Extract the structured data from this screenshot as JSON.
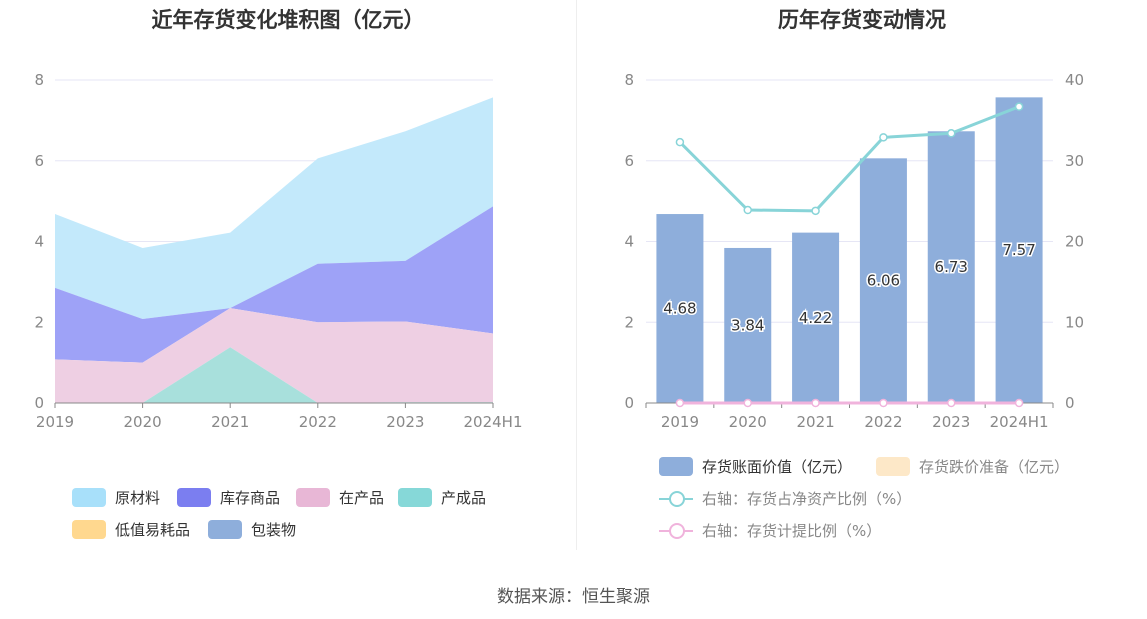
{
  "footer": {
    "source": "数据来源：恒生聚源"
  },
  "left_chart": {
    "title": "近年存货变化堆积图（亿元）",
    "chart_data": {
      "type": "area",
      "stacked": true,
      "categories": [
        "2019",
        "2020",
        "2021",
        "2022",
        "2023",
        "2024H1"
      ],
      "ylim": [
        0,
        8
      ],
      "yticks": [
        0,
        2,
        4,
        6,
        8
      ],
      "grid": true,
      "legend_position": "bottom",
      "series": [
        {
          "name": "包装物",
          "color": "#8eaedb",
          "values": [
            0,
            0,
            0,
            0,
            0,
            0
          ]
        },
        {
          "name": "低值易耗品",
          "color": "#ffd88f",
          "values": [
            0,
            0,
            0,
            0,
            0,
            0
          ]
        },
        {
          "name": "产成品",
          "color": "#a8e0dc",
          "values": [
            0,
            0,
            1.38,
            0,
            0.02,
            0.02
          ]
        },
        {
          "name": "在产品",
          "color": "#eecfe3",
          "values": [
            1.08,
            1.0,
            0.97,
            2.0,
            2.0,
            1.7
          ]
        },
        {
          "name": "库存商品",
          "color": "#9ea2f7",
          "values": [
            1.77,
            1.08,
            0,
            1.45,
            1.5,
            3.15
          ]
        },
        {
          "name": "原材料",
          "color": "#c3e9fb",
          "values": [
            1.83,
            1.76,
            1.87,
            2.61,
            3.21,
            2.7
          ]
        }
      ]
    },
    "legend": [
      {
        "label": "原材料",
        "color": "#a8e0fa"
      },
      {
        "label": "库存商品",
        "color": "#7b7ef0"
      },
      {
        "label": "在产品",
        "color": "#e8b7d6"
      },
      {
        "label": "产成品",
        "color": "#86d8d8"
      },
      {
        "label": "低值易耗品",
        "color": "#ffd88f"
      },
      {
        "label": "包装物",
        "color": "#8eaedb"
      }
    ]
  },
  "right_chart": {
    "title": "历年存货变动情况",
    "chart_data": {
      "type": "bar",
      "categories": [
        "2019",
        "2020",
        "2021",
        "2022",
        "2023",
        "2024H1"
      ],
      "ylim_left": [
        0,
        8
      ],
      "yticks_left": [
        0,
        2,
        4,
        6,
        8
      ],
      "ylim_right": [
        0,
        40
      ],
      "yticks_right": [
        0,
        10,
        20,
        30,
        40
      ],
      "grid": true,
      "legend_position": "bottom",
      "series": [
        {
          "name": "存货账面价值（亿元）",
          "type": "bar",
          "axis": "left",
          "color": "#8eaedb",
          "values": [
            4.68,
            3.84,
            4.22,
            6.06,
            6.73,
            7.57
          ],
          "labels": [
            "4.68",
            "3.84",
            "4.22",
            "6.06",
            "6.73",
            "7.57"
          ]
        },
        {
          "name": "存货跌价准备（亿元）",
          "type": "bar",
          "axis": "left",
          "color": "#fde8c8",
          "values": [
            0,
            0,
            0,
            0,
            0,
            0
          ]
        },
        {
          "name": "右轴：存货占净资产比例（%）",
          "type": "line",
          "axis": "right",
          "color": "#88d4d8",
          "values": [
            32.3,
            23.9,
            23.8,
            32.9,
            33.4,
            36.7
          ]
        },
        {
          "name": "右轴：存货计提比例（%）",
          "type": "line",
          "axis": "right",
          "color": "#f0b3dc",
          "values": [
            0,
            0,
            0,
            0,
            0,
            0
          ]
        }
      ]
    }
  }
}
